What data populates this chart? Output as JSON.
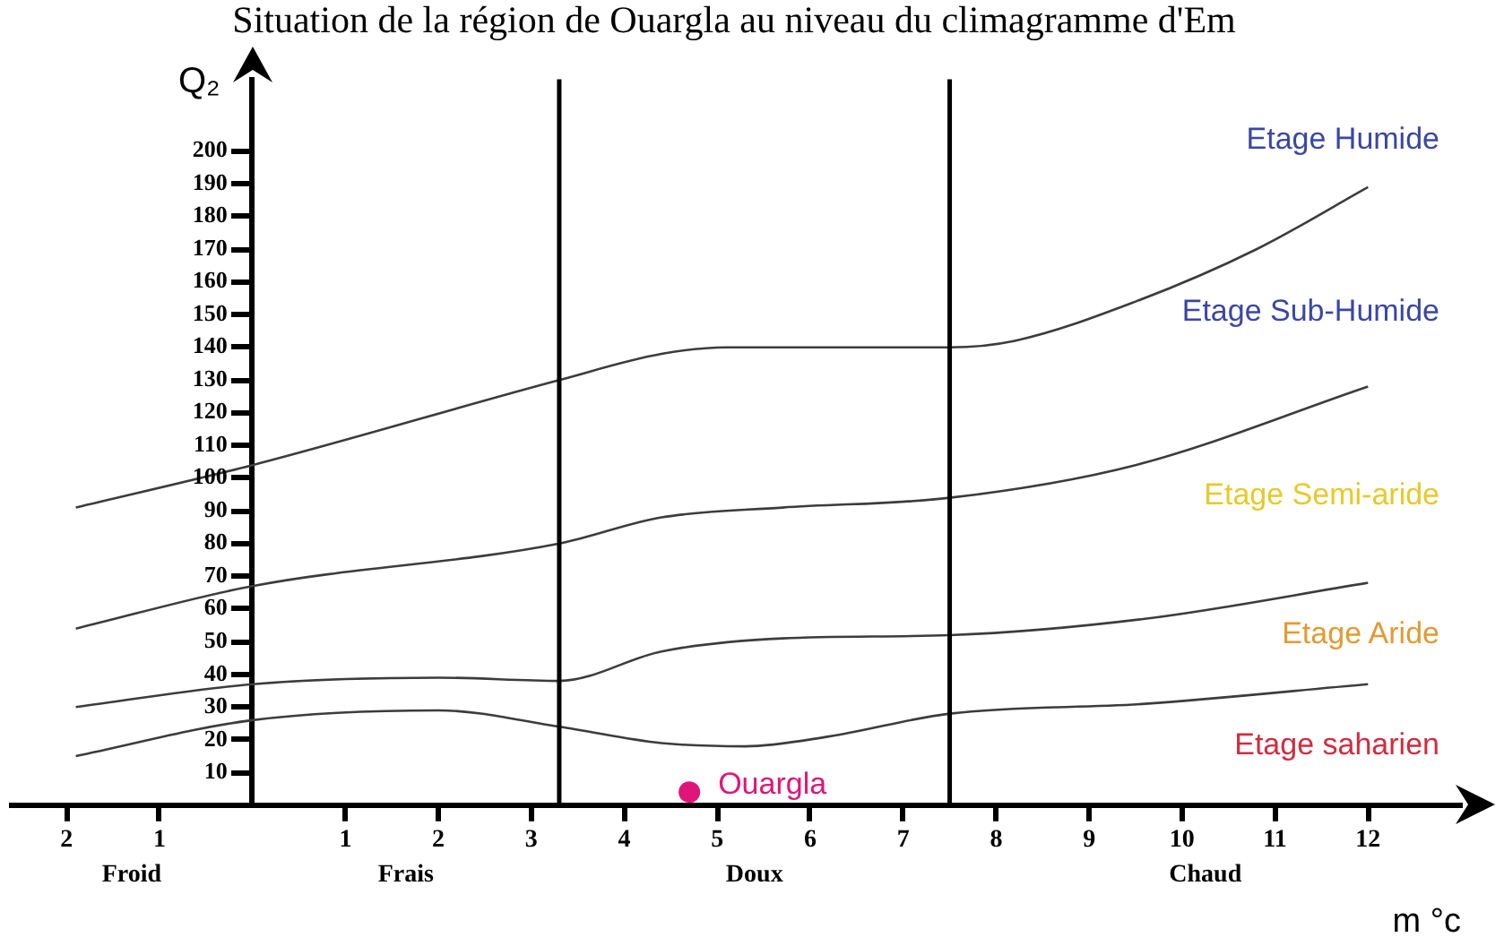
{
  "chart_data": {
    "type": "line",
    "title": "Situation de la région de Ouargla au niveau du climagramme d'Em",
    "xlabel": "m °c",
    "ylabel": "Q₂",
    "xlim": [
      -2.6,
      13
    ],
    "ylim": [
      0,
      222
    ],
    "xticks": [
      {
        "value": -2,
        "label": "2"
      },
      {
        "value": -1,
        "label": "1"
      },
      1,
      2,
      3,
      4,
      5,
      6,
      7,
      8,
      9,
      10,
      11,
      12
    ],
    "yticks": [
      10,
      20,
      30,
      40,
      50,
      60,
      70,
      80,
      90,
      100,
      110,
      120,
      130,
      140,
      150,
      160,
      170,
      180,
      190,
      200
    ],
    "line_style": "solid",
    "ref_lines": [
      {
        "axis": "x",
        "value": 3.3
      },
      {
        "axis": "x",
        "value": 7.5
      }
    ],
    "annotations": [
      "Etage Humide",
      "Etage Sub-Humide",
      "Etage Semi-aride",
      "Etage Aride",
      "Etage saharien",
      "Froid",
      "Frais",
      "Doux",
      "Chaud"
    ],
    "series": [
      {
        "color": "#3c3c3c",
        "marker": "none",
        "x": [
          -1.9,
          0,
          3.3,
          4.4,
          5.1,
          7.5,
          8.2,
          9.5,
          10.8,
          12
        ],
        "values": [
          91,
          104,
          130,
          138,
          140,
          140,
          142,
          154,
          170,
          189
        ]
      },
      {
        "color": "#3c3c3c",
        "marker": "none",
        "x": [
          -1.9,
          0,
          3.3,
          4.4,
          5.7,
          7.5,
          9.5,
          12
        ],
        "values": [
          54,
          67,
          80,
          88,
          91,
          94,
          104,
          128
        ]
      },
      {
        "color": "#3c3c3c",
        "marker": "none",
        "x": [
          -1.9,
          0,
          2,
          3.3,
          4.4,
          5.7,
          7.5,
          9.6,
          12
        ],
        "values": [
          30,
          37,
          39,
          38,
          47,
          51,
          52,
          57,
          68
        ]
      },
      {
        "color": "#3c3c3c",
        "marker": "none",
        "x": [
          -1.9,
          0,
          2,
          3.3,
          4.4,
          5.3,
          6.2,
          7.5,
          9.6,
          12
        ],
        "values": [
          15,
          26,
          29,
          24,
          19,
          18,
          21,
          28,
          31,
          37
        ]
      },
      {
        "type": "scatter",
        "name": "Ouargla",
        "color": "#e0157a",
        "marker": "circle",
        "x": [
          4.7
        ],
        "values": [
          4
        ]
      }
    ]
  }
}
